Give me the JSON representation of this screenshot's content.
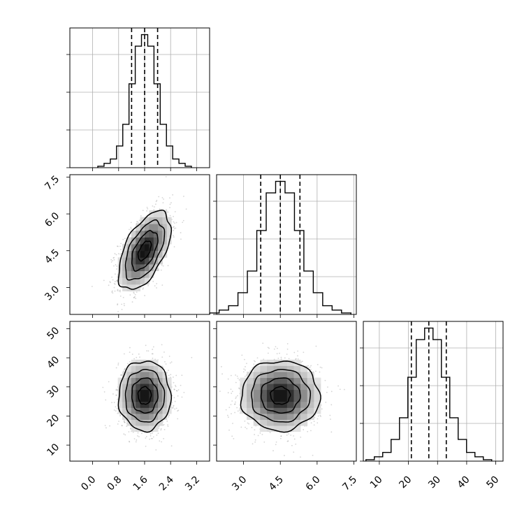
{
  "chart_data": {
    "type": "corner",
    "variables": [
      {
        "range": [
          -0.7,
          3.6
        ],
        "ticks": [
          0.0,
          0.8,
          1.6,
          2.4,
          3.2
        ],
        "tick_labels": [
          "0.0",
          "0.8",
          "1.6",
          "2.4",
          "3.2"
        ],
        "mean": 1.6,
        "sd": 0.4,
        "quantiles": [
          1.2,
          1.6,
          2.0
        ],
        "hist_counts": [
          1,
          3,
          6,
          15,
          30,
          58,
          84,
          92,
          84,
          58,
          30,
          15,
          6,
          3,
          1
        ]
      },
      {
        "range": [
          1.9,
          7.6
        ],
        "ticks": [
          3.0,
          4.5,
          6.0,
          7.5
        ],
        "tick_labels": [
          "3.0",
          "4.5",
          "6.0",
          "7.5"
        ],
        "mean": 4.5,
        "sd": 0.8,
        "quantiles": [
          3.7,
          4.5,
          5.3
        ],
        "hist_counts": [
          1,
          3,
          6,
          15,
          30,
          58,
          84,
          92,
          84,
          58,
          30,
          15,
          6,
          3,
          1
        ]
      },
      {
        "range": [
          4.5,
          52.5
        ],
        "ticks": [
          10,
          20,
          30,
          40,
          50
        ],
        "tick_labels": [
          "10",
          "20",
          "30",
          "40",
          "50"
        ],
        "mean": 27,
        "sd": 6,
        "quantiles": [
          21,
          27,
          33
        ],
        "hist_counts": [
          1,
          3,
          6,
          15,
          30,
          58,
          84,
          92,
          84,
          58,
          30,
          15,
          6,
          3,
          1
        ]
      }
    ],
    "correlations": {
      "0-1": 0.55,
      "0-2": 0.0,
      "1-2": 0.0
    },
    "contour_levels_sigma": [
      0.5,
      1.0,
      1.5,
      2.0
    ],
    "grid": true
  }
}
